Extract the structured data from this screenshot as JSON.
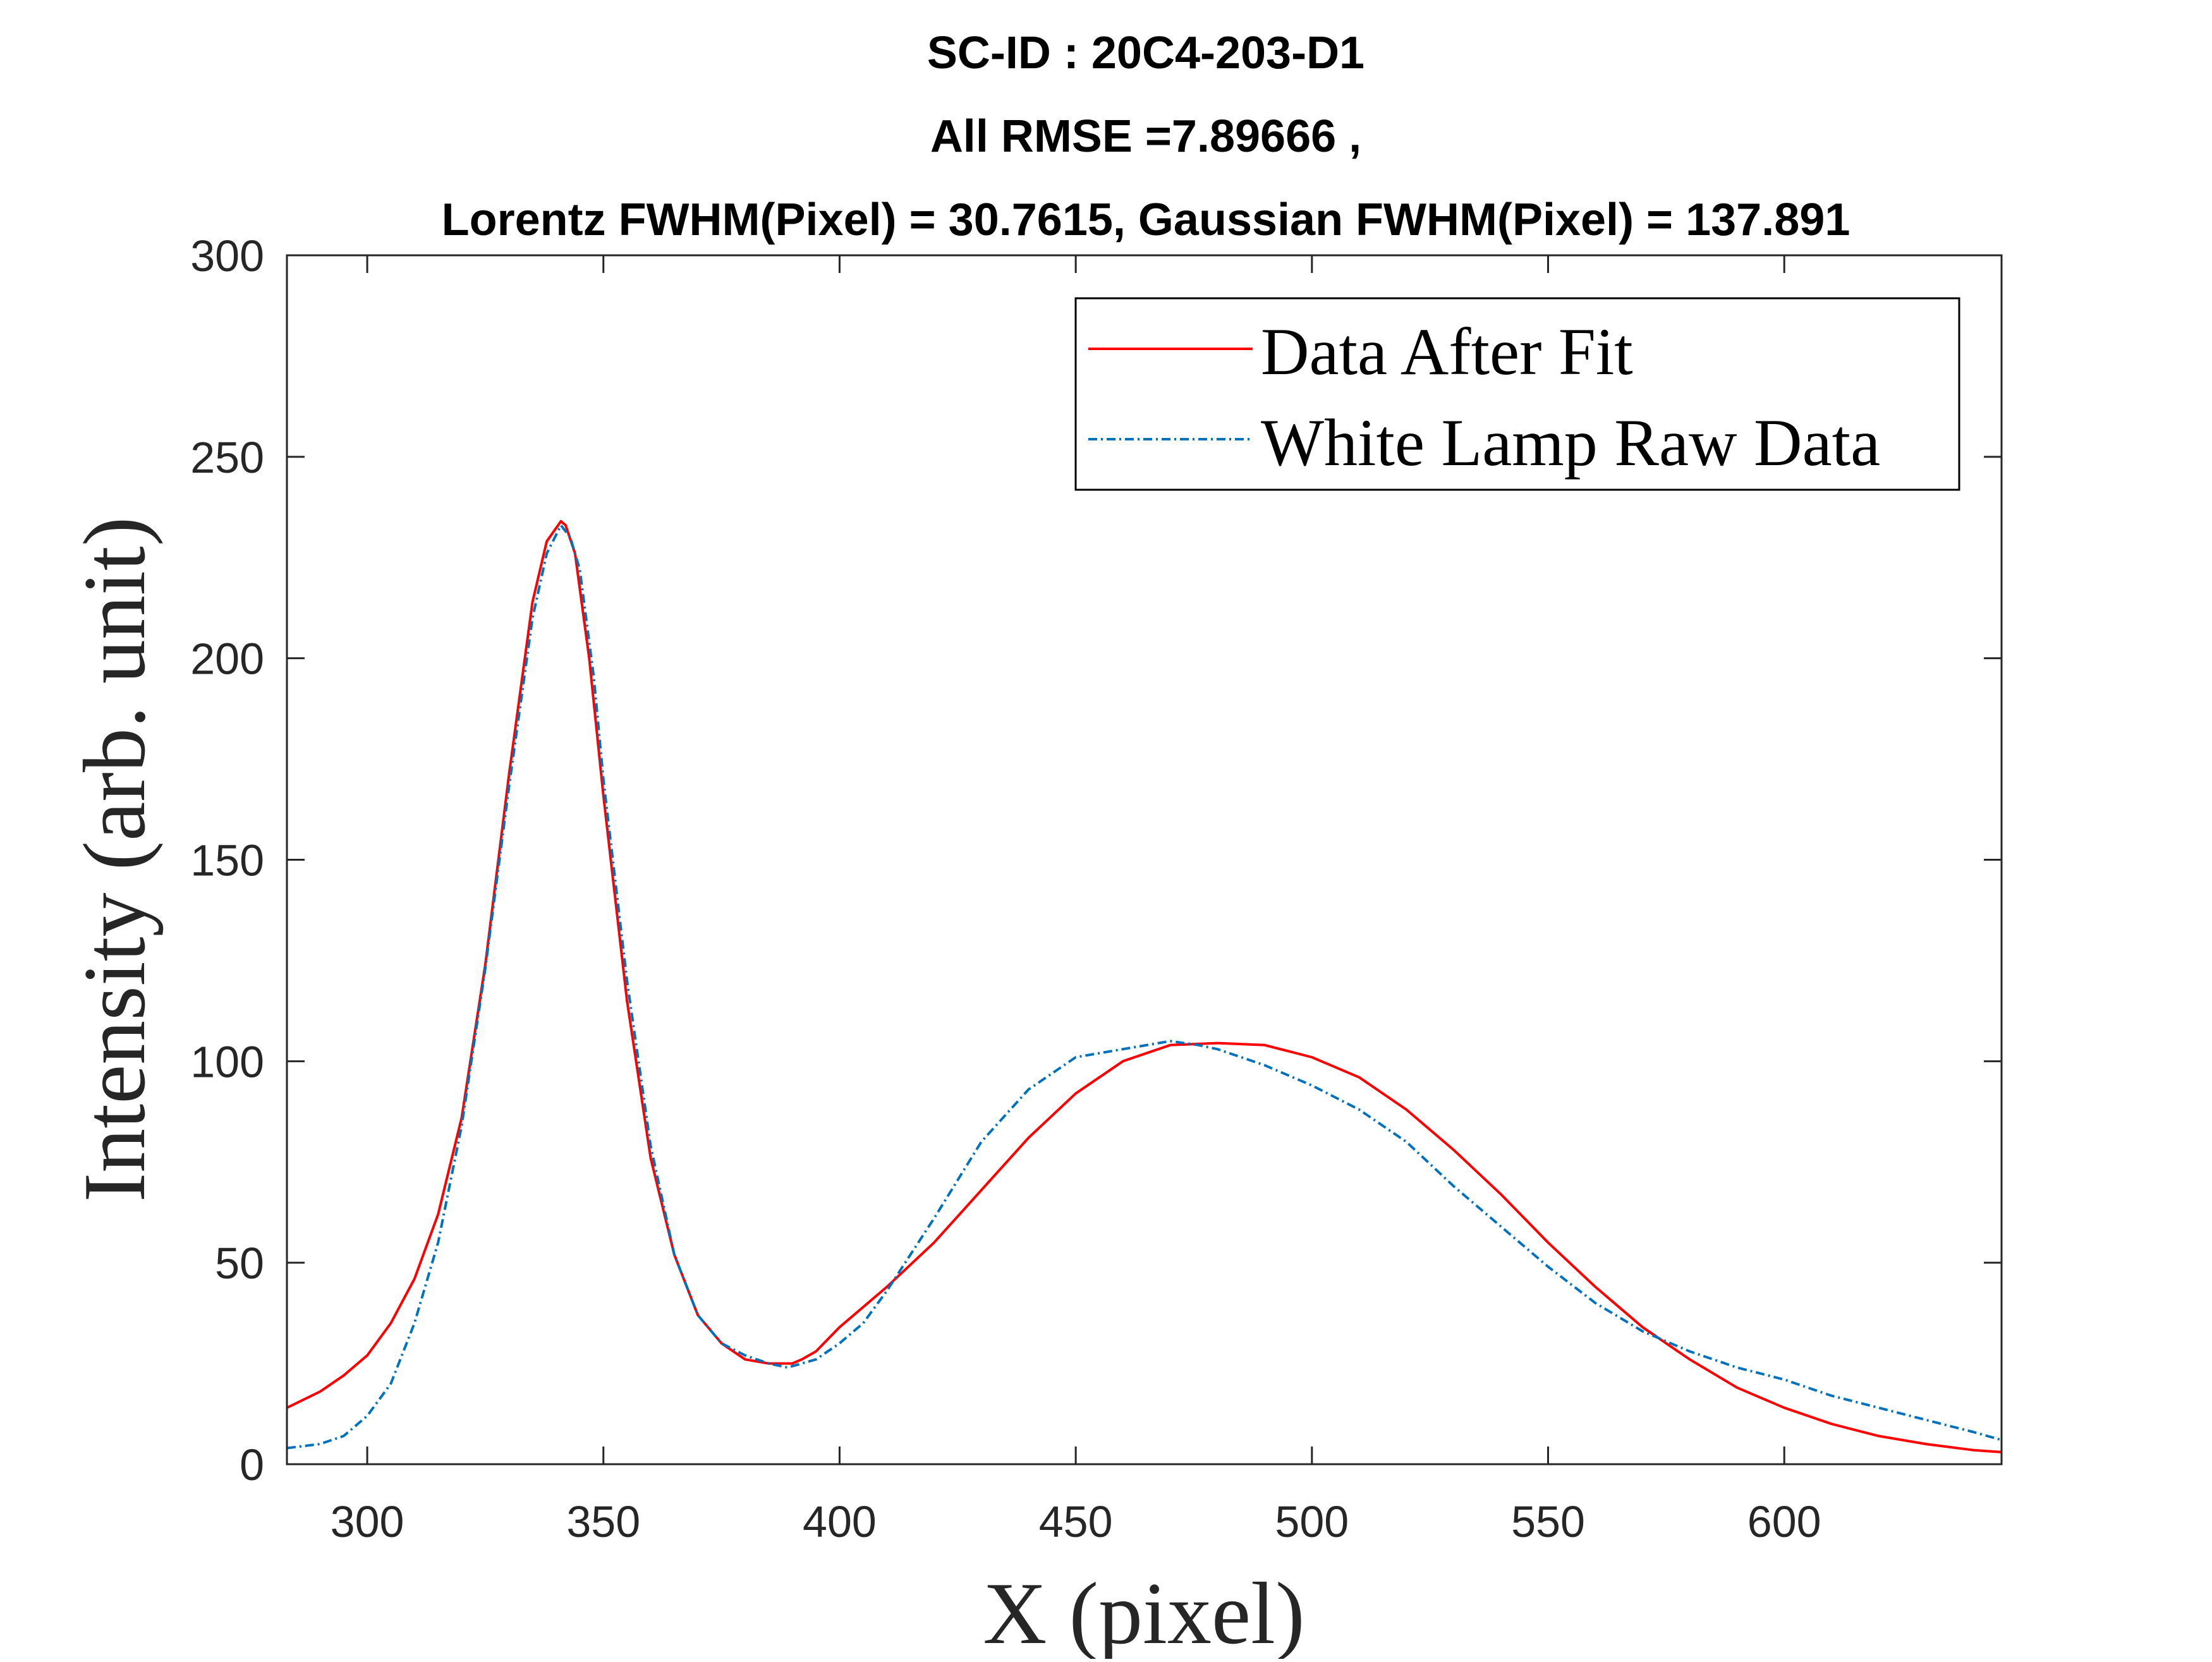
{
  "chart_data": {
    "type": "line",
    "title": [
      "SC-ID : 20C4-203-D1",
      "All RMSE =7.89666 ,",
      "Lorentz FWHM(Pixel) = 30.7615, Gaussian FWHM(Pixel) = 137.891"
    ],
    "xlabel": "X (pixel)",
    "ylabel": "Intensity (arb. unit)",
    "xlim": [
      283,
      646
    ],
    "ylim": [
      0,
      300
    ],
    "xticks": [
      300,
      350,
      400,
      450,
      500,
      550,
      600
    ],
    "yticks": [
      0,
      50,
      100,
      150,
      200,
      250,
      300
    ],
    "grid": false,
    "legend_position": "top-right",
    "colors": {
      "fit": "#ff0000",
      "raw": "#0072bd",
      "axes": "#262626"
    },
    "series": [
      {
        "name": "Data After Fit",
        "style": "solid",
        "color": "#ff0000",
        "x": [
          283,
          290,
          295,
          300,
          305,
          310,
          315,
          320,
          325,
          330,
          335,
          338,
          341,
          342,
          344,
          347,
          350,
          355,
          360,
          365,
          370,
          375,
          380,
          385,
          390,
          392,
          395,
          400,
          410,
          420,
          430,
          440,
          450,
          460,
          470,
          480,
          490,
          500,
          510,
          520,
          530,
          540,
          550,
          560,
          570,
          580,
          590,
          600,
          610,
          620,
          630,
          640,
          646
        ],
        "y": [
          14,
          18,
          22,
          27,
          35,
          46,
          62,
          86,
          124,
          171,
          214,
          229,
          234,
          233,
          226,
          200,
          166,
          115,
          76,
          52,
          37,
          30,
          26,
          25,
          25,
          26,
          28,
          34,
          44,
          55,
          68,
          81,
          92,
          100,
          104,
          104.5,
          104,
          101,
          96,
          88,
          78,
          67,
          55,
          44,
          34,
          26,
          19,
          14,
          10,
          7,
          5,
          3.5,
          3
        ]
      },
      {
        "name": "White Lamp Raw Data",
        "style": "dash-dot",
        "color": "#0072bd",
        "x": [
          283,
          290,
          295,
          300,
          305,
          310,
          315,
          320,
          325,
          330,
          335,
          338,
          341,
          343,
          345,
          348,
          350,
          355,
          360,
          365,
          370,
          375,
          380,
          385,
          389,
          395,
          400,
          405,
          410,
          420,
          430,
          440,
          450,
          460,
          470,
          476,
          480,
          490,
          500,
          510,
          520,
          530,
          540,
          550,
          560,
          570,
          580,
          590,
          600,
          610,
          620,
          630,
          640,
          646
        ],
        "y": [
          4,
          5,
          7,
          12,
          20,
          35,
          55,
          84,
          123,
          168,
          210,
          226,
          233,
          230,
          222,
          195,
          170,
          120,
          79,
          52,
          37,
          30,
          27,
          25,
          24,
          26,
          30,
          35,
          43,
          61,
          80,
          93,
          101,
          103,
          105,
          104,
          103,
          99,
          94,
          88,
          80,
          69,
          59,
          49,
          40,
          33,
          28,
          24,
          21,
          17,
          14,
          11,
          8,
          6
        ]
      }
    ]
  }
}
